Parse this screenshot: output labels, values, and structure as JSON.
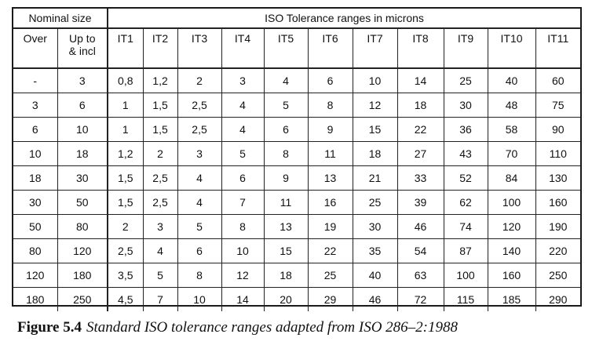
{
  "table": {
    "group_headers": {
      "nominal_size": "Nominal size",
      "iso_tolerance": "ISO Tolerance ranges in microns"
    },
    "columns": [
      "Over",
      "Up to\n& incl",
      "IT1",
      "IT2",
      "IT3",
      "IT4",
      "IT5",
      "IT6",
      "IT7",
      "IT8",
      "IT9",
      "IT10",
      "IT11"
    ],
    "rows": [
      [
        "-",
        "3",
        "0,8",
        "1,2",
        "2",
        "3",
        "4",
        "6",
        "10",
        "14",
        "25",
        "40",
        "60"
      ],
      [
        "3",
        "6",
        "1",
        "1,5",
        "2,5",
        "4",
        "5",
        "8",
        "12",
        "18",
        "30",
        "48",
        "75"
      ],
      [
        "6",
        "10",
        "1",
        "1,5",
        "2,5",
        "4",
        "6",
        "9",
        "15",
        "22",
        "36",
        "58",
        "90"
      ],
      [
        "10",
        "18",
        "1,2",
        "2",
        "3",
        "5",
        "8",
        "11",
        "18",
        "27",
        "43",
        "70",
        "110"
      ],
      [
        "18",
        "30",
        "1,5",
        "2,5",
        "4",
        "6",
        "9",
        "13",
        "21",
        "33",
        "52",
        "84",
        "130"
      ],
      [
        "30",
        "50",
        "1,5",
        "2,5",
        "4",
        "7",
        "11",
        "16",
        "25",
        "39",
        "62",
        "100",
        "160"
      ],
      [
        "50",
        "80",
        "2",
        "3",
        "5",
        "8",
        "13",
        "19",
        "30",
        "46",
        "74",
        "120",
        "190"
      ],
      [
        "80",
        "120",
        "2,5",
        "4",
        "6",
        "10",
        "15",
        "22",
        "35",
        "54",
        "87",
        "140",
        "220"
      ],
      [
        "120",
        "180",
        "3,5",
        "5",
        "8",
        "12",
        "18",
        "25",
        "40",
        "63",
        "100",
        "160",
        "250"
      ],
      [
        "180",
        "250",
        "4,5",
        "7",
        "10",
        "14",
        "20",
        "29",
        "46",
        "72",
        "115",
        "185",
        "290"
      ]
    ]
  },
  "caption": {
    "label": "Figure 5.4",
    "text": "Standard ISO tolerance ranges adapted from ISO 286–2:1988"
  }
}
